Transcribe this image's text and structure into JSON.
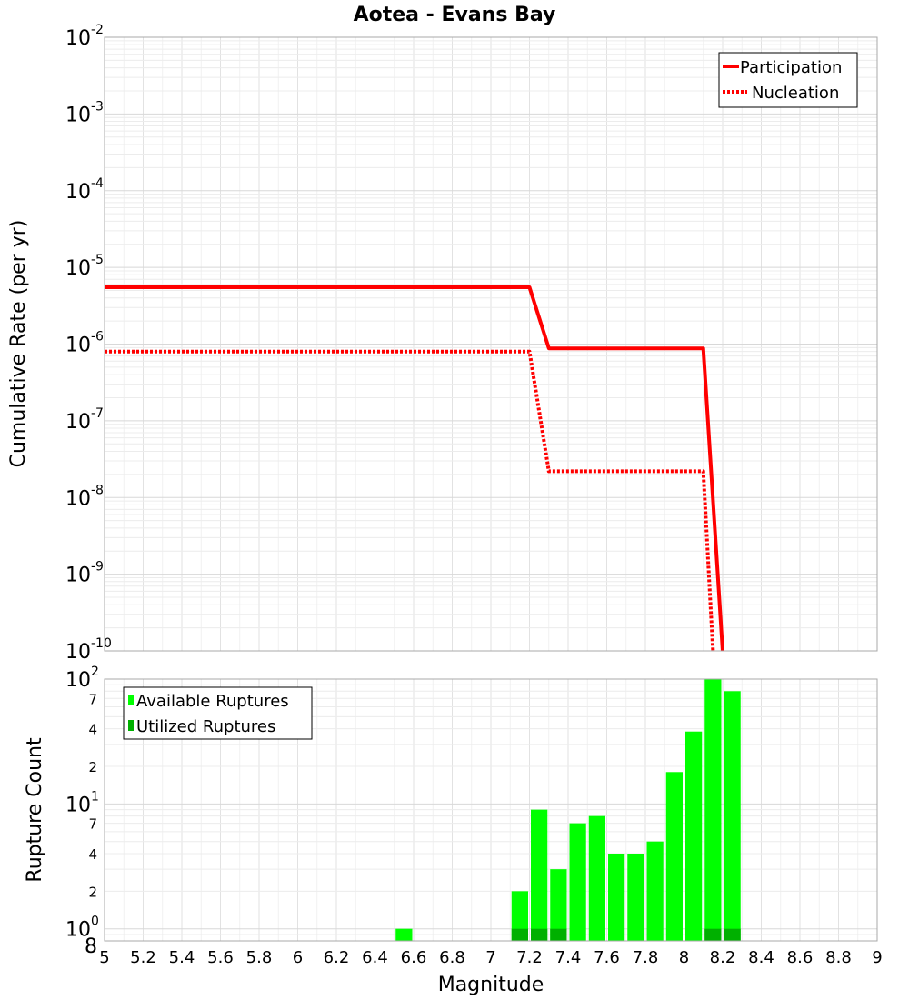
{
  "chart_data": [
    {
      "type": "line",
      "title": "Aotea - Evans Bay",
      "xlabel": "",
      "ylabel": "Cumulative Rate (per yr)",
      "y_scale": "log",
      "xlim": [
        5,
        9
      ],
      "ylim": [
        1e-10,
        0.01
      ],
      "y_tick_labels": [
        {
          "base": "10",
          "exp": "-2"
        },
        {
          "base": "10",
          "exp": "-3"
        },
        {
          "base": "10",
          "exp": "-4"
        },
        {
          "base": "10",
          "exp": "-5"
        },
        {
          "base": "10",
          "exp": "-6"
        },
        {
          "base": "10",
          "exp": "-7"
        },
        {
          "base": "10",
          "exp": "-8"
        },
        {
          "base": "10",
          "exp": "-9"
        },
        {
          "base": "10",
          "exp": "-10"
        }
      ],
      "grid": true,
      "legend": "top-right",
      "series": [
        {
          "name": "Participation",
          "color": "#ff0000",
          "style": "solid",
          "points": [
            [
              5.0,
              5.5e-06
            ],
            [
              7.2,
              5.5e-06
            ],
            [
              7.3,
              8.8e-07
            ],
            [
              8.1,
              8.8e-07
            ],
            [
              8.2,
              1e-10
            ]
          ]
        },
        {
          "name": "Nucleation",
          "color": "#ff0000",
          "style": "dotted",
          "points": [
            [
              5.0,
              8e-07
            ],
            [
              7.2,
              8e-07
            ],
            [
              7.3,
              2.2e-08
            ],
            [
              8.1,
              2.2e-08
            ],
            [
              8.15,
              1e-10
            ]
          ]
        }
      ]
    },
    {
      "type": "bar",
      "title": "",
      "xlabel": "Magnitude",
      "ylabel": "Rupture Count",
      "y_scale": "log",
      "xlim": [
        5,
        9
      ],
      "ylim": [
        0.8,
        100
      ],
      "x_ticks": [
        "5",
        "5.2",
        "5.4",
        "5.6",
        "5.8",
        "6",
        "6.2",
        "6.4",
        "6.6",
        "6.8",
        "7",
        "7.2",
        "7.4",
        "7.6",
        "7.8",
        "8",
        "8.2",
        "8.4",
        "8.6",
        "8.8",
        "9"
      ],
      "y_major_labels": [
        {
          "base": "10",
          "exp": "2"
        },
        {
          "base": "10",
          "exp": "1"
        },
        {
          "base": "10",
          "exp": "0"
        }
      ],
      "y_minor_labels": [
        "7",
        "4",
        "2",
        "7",
        "4",
        "2",
        "8"
      ],
      "grid": true,
      "legend": "top-left",
      "bin_width": 0.1,
      "series": [
        {
          "name": "Available Ruptures",
          "color": "#00ff00",
          "bins": [
            [
              6.55,
              1
            ],
            [
              7.15,
              2
            ],
            [
              7.25,
              9
            ],
            [
              7.35,
              3
            ],
            [
              7.45,
              7
            ],
            [
              7.55,
              8
            ],
            [
              7.65,
              4
            ],
            [
              7.75,
              4
            ],
            [
              7.85,
              5
            ],
            [
              7.95,
              18
            ],
            [
              8.05,
              38
            ],
            [
              8.15,
              100
            ],
            [
              8.25,
              80
            ]
          ]
        },
        {
          "name": "Utilized Ruptures",
          "color": "#00b000",
          "bins": [
            [
              7.15,
              1
            ],
            [
              7.25,
              1
            ],
            [
              7.35,
              1
            ],
            [
              8.15,
              1
            ],
            [
              8.25,
              1
            ]
          ]
        }
      ]
    }
  ]
}
